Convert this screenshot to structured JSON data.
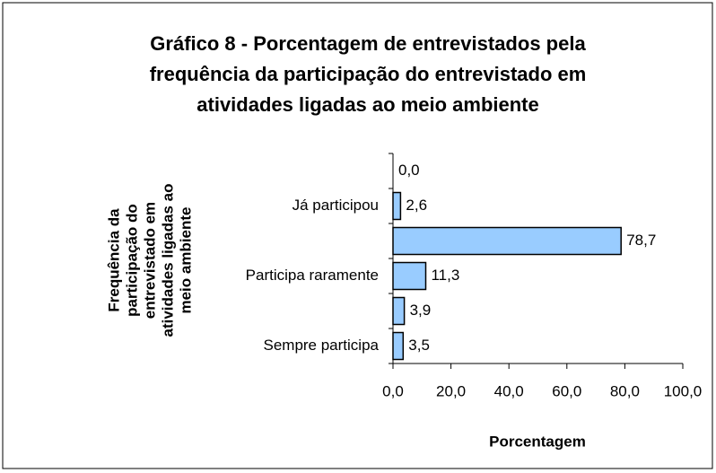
{
  "chart_data": {
    "type": "barh",
    "title": [
      "Gráfico 8 - Porcentagem de entrevistados pela",
      "frequência da participação do entrevistado em",
      "atividades ligadas ao meio ambiente"
    ],
    "ylabel": [
      "Frequência da",
      "participação do",
      "entrevistado em",
      "atividades ligadas ao",
      "meio ambiente"
    ],
    "xlabel": "Porcentagem",
    "categories": [
      null,
      "Já participou",
      null,
      "Participa raramente",
      null,
      "Sempre participa"
    ],
    "values": [
      0.0,
      2.6,
      78.7,
      11.3,
      3.9,
      3.5
    ],
    "value_labels": [
      "0,0",
      "2,6",
      "78,7",
      "11,3",
      "3,9",
      "3,5"
    ],
    "color": "#99ccff",
    "xlim": [
      0,
      100
    ],
    "xticks": [
      {
        "value": 0,
        "label": "0,0"
      },
      {
        "value": 20,
        "label": "20,0"
      },
      {
        "value": 40,
        "label": "40,0"
      },
      {
        "value": 60,
        "label": "60,0"
      },
      {
        "value": 80,
        "label": "80,0"
      },
      {
        "value": 100,
        "label": "100,0"
      }
    ]
  }
}
